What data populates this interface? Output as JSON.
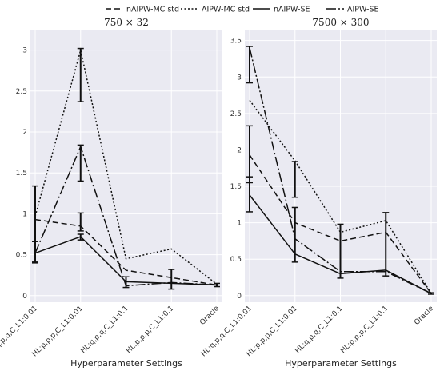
{
  "chart_data": [
    {
      "type": "line",
      "title": "750 × 32",
      "xlabel": "Hyperparameter Settings",
      "ylabel": "",
      "ylim": [
        -0.08,
        3.25
      ],
      "yticks": [
        "0",
        "0.5",
        "1",
        "1.5",
        "2",
        "2.5",
        "3"
      ],
      "categories": [
        "HL:q,p,q,C_L1:0.01",
        "HL:p,p,p,C_L1:0.01",
        "HL:q,p,q,C_L1:0.1",
        "HL:p,p,p,C_L1:0.1",
        "Oracle"
      ],
      "series": [
        {
          "name": "nAIPW-MC std",
          "values": [
            0.93,
            0.85,
            0.31,
            0.22,
            0.13
          ],
          "err": [
            0,
            0,
            0,
            0,
            0
          ]
        },
        {
          "name": "AIPW-MC std",
          "values": [
            0.97,
            3.0,
            0.45,
            0.57,
            0.14
          ],
          "err": [
            0,
            0,
            0,
            0,
            0
          ]
        },
        {
          "name": "nAIPW-SE",
          "values": [
            0.52,
            0.72,
            0.17,
            0.15,
            0.13
          ],
          "err": [
            0.1,
            0.05,
            0.04,
            0.03,
            0.01
          ]
        },
        {
          "name": "AIPW-SE",
          "values": [
            0.52,
            1.82,
            0.12,
            0.16,
            0.13
          ],
          "err": [
            0.12,
            0.02,
            0.02,
            0.02,
            0.01
          ]
        }
      ],
      "errorbars": [
        {
          "x": 0,
          "lo": 0.41,
          "hi": 1.34
        },
        {
          "x": 0,
          "lo": 0.4,
          "hi": 0.66
        },
        {
          "x": 1,
          "lo": 2.37,
          "hi": 3.02
        },
        {
          "x": 1,
          "lo": 1.4,
          "hi": 1.84
        },
        {
          "x": 1,
          "lo": 0.79,
          "hi": 1.01
        },
        {
          "x": 1,
          "lo": 0.68,
          "hi": 0.75
        },
        {
          "x": 2,
          "lo": 0.1,
          "hi": 0.23
        },
        {
          "x": 3,
          "lo": 0.08,
          "hi": 0.32
        },
        {
          "x": 4,
          "lo": 0.11,
          "hi": 0.15
        }
      ]
    },
    {
      "type": "line",
      "title": "7500 × 300",
      "xlabel": "Hyperparameter Settings",
      "ylabel": "",
      "ylim": [
        -0.09,
        3.65
      ],
      "yticks": [
        "0",
        "0.5",
        "1",
        "1.5",
        "2",
        "2.5",
        "3",
        "3.5"
      ],
      "categories": [
        "HL:q,p,q,C_L1:0.01",
        "HL:p,p,p,C_L1:0.01",
        "HL:q,p,q,C_L1:0.1",
        "HL:p,p,p,C_L1:0.1",
        "Oracle"
      ],
      "series": [
        {
          "name": "nAIPW-MC std",
          "values": [
            1.93,
            1.0,
            0.75,
            0.87,
            0.03
          ],
          "err": [
            0,
            0,
            0,
            0,
            0
          ]
        },
        {
          "name": "AIPW-MC std",
          "values": [
            2.68,
            1.85,
            0.87,
            1.03,
            0.03
          ],
          "err": [
            0,
            0,
            0,
            0,
            0
          ]
        },
        {
          "name": "nAIPW-SE",
          "values": [
            1.38,
            0.57,
            0.3,
            0.35,
            0.03
          ],
          "err": [
            0.23,
            0.08,
            0.06,
            0.09,
            0.01
          ]
        },
        {
          "name": "AIPW-SE",
          "values": [
            3.4,
            0.78,
            0.33,
            0.33,
            0.03
          ],
          "err": [
            0.48,
            0.45,
            0.08,
            0.07,
            0.01
          ]
        }
      ],
      "errorbars": [
        {
          "x": 0,
          "lo": 2.92,
          "hi": 3.42
        },
        {
          "x": 0,
          "lo": 1.55,
          "hi": 2.33
        },
        {
          "x": 0,
          "lo": 1.15,
          "hi": 1.63
        },
        {
          "x": 1,
          "lo": 1.35,
          "hi": 1.84
        },
        {
          "x": 1,
          "lo": 0.46,
          "hi": 1.21
        },
        {
          "x": 2,
          "lo": 0.24,
          "hi": 0.98
        },
        {
          "x": 3,
          "lo": 0.27,
          "hi": 1.14
        },
        {
          "x": 4,
          "lo": 0.02,
          "hi": 0.04
        }
      ]
    }
  ],
  "legend": {
    "placement": "top",
    "entries": [
      {
        "label": "nAIPW-MC std",
        "dash": "7,4"
      },
      {
        "label": "AIPW-MC std",
        "dash": "2,2.5"
      },
      {
        "label": "nAIPW-SE",
        "dash": "none"
      },
      {
        "label": "AIPW-SE",
        "dash": "12,3,2,3"
      }
    ]
  },
  "style": {
    "line_color": "#111111",
    "panel_bg": "#eaeaf2",
    "grid_color": "#ffffff"
  }
}
